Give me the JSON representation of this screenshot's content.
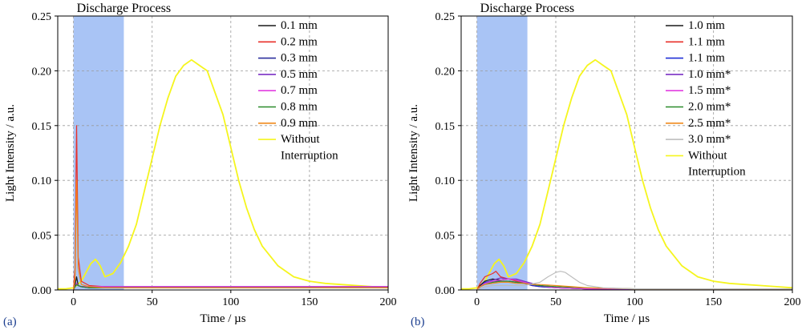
{
  "chart_data": [
    {
      "type": "line",
      "panel_label": "(a)",
      "title": "Discharge Process",
      "xlabel": "Time  / µs",
      "ylabel": "Light Intensity / a.u.",
      "xlim": [
        -10,
        200
      ],
      "ylim": [
        0,
        0.25
      ],
      "xticks": [
        0,
        50,
        100,
        150,
        200
      ],
      "yticks": [
        0.0,
        0.05,
        0.1,
        0.15,
        0.2,
        0.25
      ],
      "grid": true,
      "shaded_region": {
        "label": "Discharge Process",
        "x": [
          0,
          32
        ],
        "color": "#a9c4f5"
      },
      "legend": {
        "placement": "top-right"
      },
      "series": [
        {
          "name": "0.1 mm",
          "color": "#1a1a1a",
          "x": [
            0,
            1,
            2,
            3,
            5,
            10,
            20,
            40,
            80,
            150,
            200
          ],
          "y": [
            0.0,
            0.005,
            0.012,
            0.004,
            0.003,
            0.002,
            0.002,
            0.002,
            0.002,
            0.002,
            0.002
          ]
        },
        {
          "name": "0.2 mm",
          "color": "#e8302a",
          "x": [
            0,
            1,
            2,
            3,
            5,
            10,
            20,
            40,
            80,
            150,
            200
          ],
          "y": [
            0.0,
            0.02,
            0.15,
            0.03,
            0.008,
            0.004,
            0.003,
            0.003,
            0.003,
            0.003,
            0.003
          ]
        },
        {
          "name": "0.3 mm",
          "color": "#2b2f9e",
          "x": [
            0,
            1,
            2,
            3,
            5,
            10,
            20,
            40,
            80,
            150,
            200
          ],
          "y": [
            0.0,
            0.003,
            0.006,
            0.004,
            0.003,
            0.003,
            0.003,
            0.003,
            0.003,
            0.003,
            0.003
          ]
        },
        {
          "name": "0.5 mm",
          "color": "#7a2fc4",
          "x": [
            0,
            1,
            2,
            3,
            5,
            10,
            20,
            40,
            80,
            150,
            200
          ],
          "y": [
            0.0,
            0.003,
            0.005,
            0.004,
            0.003,
            0.003,
            0.003,
            0.003,
            0.003,
            0.003,
            0.003
          ]
        },
        {
          "name": "0.7 mm",
          "color": "#e23de0",
          "x": [
            0,
            1,
            2,
            3,
            5,
            10,
            20,
            40,
            80,
            150,
            200
          ],
          "y": [
            0.0,
            0.003,
            0.006,
            0.004,
            0.003,
            0.003,
            0.003,
            0.003,
            0.003,
            0.003,
            0.003
          ]
        },
        {
          "name": "0.8 mm",
          "color": "#2a8a2a",
          "x": [
            0,
            1,
            2,
            3,
            5,
            10,
            20,
            40,
            80,
            150,
            200
          ],
          "y": [
            0.0,
            0.003,
            0.005,
            0.004,
            0.003,
            0.002,
            0.002,
            0.002,
            0.002,
            0.002,
            0.002
          ]
        },
        {
          "name": "0.9 mm",
          "color": "#f08a1c",
          "x": [
            0,
            1,
            2,
            3,
            5,
            10,
            20,
            40,
            80,
            150,
            200
          ],
          "y": [
            0.0,
            0.01,
            0.1,
            0.02,
            0.005,
            0.003,
            0.002,
            0.002,
            0.002,
            0.002,
            0.002
          ]
        },
        {
          "name": "Without Interruption",
          "legend_lines": [
            "Without",
            "Interruption"
          ],
          "color": "#f5f51e",
          "x": [
            -10,
            -5,
            0,
            2,
            5,
            8,
            11,
            14,
            17,
            20,
            25,
            30,
            35,
            40,
            45,
            50,
            55,
            60,
            65,
            70,
            75,
            80,
            85,
            90,
            95,
            100,
            105,
            110,
            115,
            120,
            130,
            140,
            150,
            160,
            170,
            180,
            190,
            200
          ],
          "y": [
            0.001,
            0.001,
            0.002,
            0.004,
            0.008,
            0.016,
            0.024,
            0.028,
            0.022,
            0.012,
            0.015,
            0.025,
            0.04,
            0.06,
            0.09,
            0.12,
            0.15,
            0.175,
            0.195,
            0.205,
            0.21,
            0.205,
            0.2,
            0.18,
            0.16,
            0.13,
            0.1,
            0.075,
            0.055,
            0.04,
            0.022,
            0.012,
            0.008,
            0.006,
            0.005,
            0.004,
            0.003,
            0.002
          ]
        }
      ]
    },
    {
      "type": "line",
      "panel_label": "(b)",
      "title": "Discharge Process",
      "xlabel": "Time  / µs",
      "ylabel": "Light Intensity / a.u.",
      "xlim": [
        -10,
        200
      ],
      "ylim": [
        0,
        0.25
      ],
      "xticks": [
        0,
        50,
        100,
        150,
        200
      ],
      "yticks": [
        0.0,
        0.05,
        0.1,
        0.15,
        0.2,
        0.25
      ],
      "grid": true,
      "shaded_region": {
        "label": "Discharge Process",
        "x": [
          0,
          32
        ],
        "color": "#a9c4f5"
      },
      "legend": {
        "placement": "top-right"
      },
      "series": [
        {
          "name": "1.0 mm",
          "color": "#1a1a1a",
          "x": [
            0,
            2,
            5,
            10,
            15,
            20,
            25,
            30,
            35,
            40,
            50,
            70,
            100,
            150,
            200
          ],
          "y": [
            0.0,
            0.004,
            0.008,
            0.01,
            0.009,
            0.01,
            0.009,
            0.007,
            0.005,
            0.004,
            0.002,
            0.001,
            0.001,
            0.001,
            0.001
          ]
        },
        {
          "name": "1.1 mm",
          "color": "#e8302a",
          "x": [
            0,
            2,
            5,
            10,
            12,
            15,
            20,
            25,
            30,
            35,
            40,
            50,
            70,
            100,
            150,
            200
          ],
          "y": [
            0.0,
            0.006,
            0.012,
            0.015,
            0.017,
            0.012,
            0.01,
            0.008,
            0.006,
            0.004,
            0.003,
            0.002,
            0.001,
            0.001,
            0.001,
            0.001
          ]
        },
        {
          "name": "1.1 mm",
          "color": "#1f2fd6",
          "x": [
            0,
            2,
            5,
            10,
            15,
            20,
            25,
            30,
            35,
            40,
            50,
            70,
            100,
            150,
            200
          ],
          "y": [
            0.0,
            0.003,
            0.007,
            0.008,
            0.008,
            0.008,
            0.007,
            0.006,
            0.004,
            0.003,
            0.002,
            0.001,
            0.001,
            0.001,
            0.001
          ]
        },
        {
          "name": "1.0 mm*",
          "color": "#7a2fc4",
          "x": [
            0,
            2,
            5,
            10,
            15,
            20,
            25,
            30,
            35,
            40,
            50,
            70,
            100,
            150,
            200
          ],
          "y": [
            0.0,
            0.003,
            0.006,
            0.009,
            0.011,
            0.01,
            0.01,
            0.008,
            0.006,
            0.004,
            0.002,
            0.001,
            0.001,
            0.001,
            0.001
          ]
        },
        {
          "name": "1.5 mm*",
          "color": "#e23de0",
          "x": [
            0,
            2,
            5,
            10,
            15,
            20,
            25,
            30,
            35,
            40,
            50,
            70,
            100,
            150,
            200
          ],
          "y": [
            0.0,
            0.003,
            0.006,
            0.008,
            0.009,
            0.01,
            0.009,
            0.007,
            0.005,
            0.004,
            0.002,
            0.001,
            0.001,
            0.001,
            0.001
          ]
        },
        {
          "name": "2.0 mm*",
          "color": "#2a8a2a",
          "x": [
            0,
            2,
            5,
            10,
            15,
            20,
            25,
            30,
            35,
            40,
            50,
            70,
            100,
            150,
            200
          ],
          "y": [
            0.0,
            0.003,
            0.005,
            0.007,
            0.008,
            0.008,
            0.007,
            0.006,
            0.005,
            0.004,
            0.003,
            0.002,
            0.001,
            0.001,
            0.001
          ]
        },
        {
          "name": "2.5 mm*",
          "color": "#f08a1c",
          "x": [
            0,
            2,
            5,
            10,
            15,
            20,
            25,
            30,
            35,
            40,
            50,
            60,
            70,
            100,
            150,
            200
          ],
          "y": [
            0.0,
            0.003,
            0.005,
            0.006,
            0.007,
            0.007,
            0.006,
            0.006,
            0.005,
            0.005,
            0.004,
            0.003,
            0.002,
            0.001,
            0.001,
            0.001
          ]
        },
        {
          "name": "3.0 mm*",
          "color": "#bdbdbd",
          "x": [
            0,
            5,
            10,
            20,
            30,
            40,
            45,
            50,
            53,
            56,
            60,
            65,
            70,
            80,
            100,
            150,
            200
          ],
          "y": [
            0.0,
            0.003,
            0.004,
            0.004,
            0.004,
            0.007,
            0.012,
            0.016,
            0.017,
            0.016,
            0.012,
            0.007,
            0.004,
            0.002,
            0.001,
            0.001,
            0.001
          ]
        },
        {
          "name": "Without Interruption",
          "legend_lines": [
            "Without",
            "Interruption"
          ],
          "color": "#f5f51e",
          "x": [
            -10,
            -5,
            0,
            2,
            5,
            8,
            11,
            14,
            17,
            20,
            25,
            30,
            35,
            40,
            45,
            50,
            55,
            60,
            65,
            70,
            75,
            80,
            85,
            90,
            95,
            100,
            105,
            110,
            115,
            120,
            130,
            140,
            150,
            160,
            170,
            180,
            190,
            200
          ],
          "y": [
            0.001,
            0.001,
            0.002,
            0.004,
            0.008,
            0.016,
            0.024,
            0.028,
            0.022,
            0.012,
            0.015,
            0.025,
            0.04,
            0.06,
            0.09,
            0.12,
            0.15,
            0.175,
            0.195,
            0.205,
            0.21,
            0.205,
            0.2,
            0.18,
            0.16,
            0.13,
            0.1,
            0.075,
            0.055,
            0.04,
            0.022,
            0.012,
            0.008,
            0.006,
            0.005,
            0.004,
            0.003,
            0.002
          ]
        }
      ]
    }
  ]
}
